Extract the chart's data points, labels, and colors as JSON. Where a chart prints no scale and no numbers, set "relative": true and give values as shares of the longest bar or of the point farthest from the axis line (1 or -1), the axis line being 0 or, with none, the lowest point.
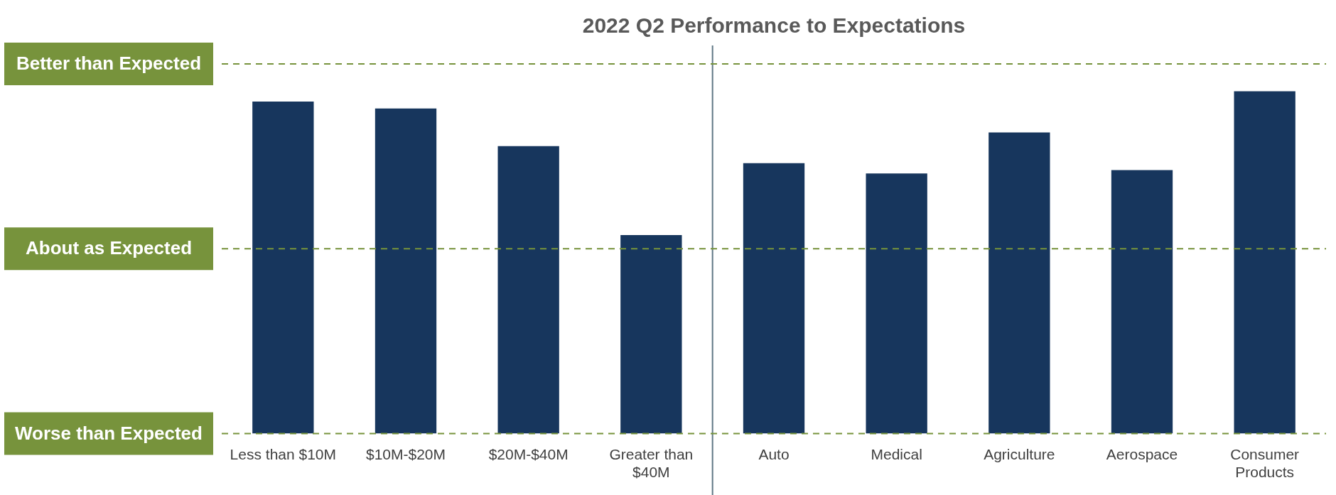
{
  "chart_data": {
    "type": "bar",
    "title": "2022 Q2 Performance to Expectations",
    "categories": [
      "Less than $10M",
      "$10M-$20M",
      "$20M-$40M",
      "Greater than $40M",
      "Auto",
      "Medical",
      "Agriculture",
      "Aerospace",
      "Consumer Products"
    ],
    "values": [
      0.97,
      0.95,
      0.84,
      0.58,
      0.79,
      0.76,
      0.88,
      0.77,
      1
    ],
    "color": "#17365d",
    "relative": true,
    "ref_lines": [
      {
        "axis": "y",
        "value": 1.08,
        "label": "Better than Expected",
        "color": "#77933c",
        "line_style": "dashed"
      },
      {
        "axis": "y",
        "value": 0.54,
        "label": "About as Expected",
        "color": "#77933c",
        "line_style": "dashed"
      },
      {
        "axis": "y",
        "value": 0,
        "label": "Worse than Expected",
        "color": "#77933c",
        "line_style": "dashed"
      }
    ]
  }
}
